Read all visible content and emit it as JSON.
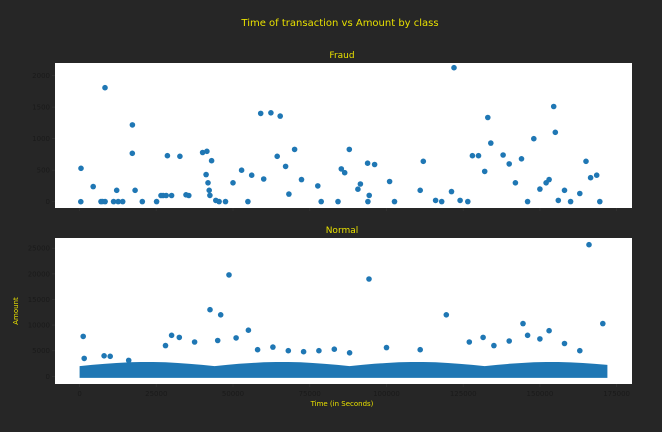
{
  "figure": {
    "title": "Time of transaction vs Amount by class",
    "background": "#262626",
    "title_color": "#e8e000",
    "marker_color": "#1f77b4"
  },
  "chart_data": [
    {
      "type": "scatter",
      "title": "Fraud",
      "xlabel": "",
      "ylabel": "",
      "xlim": [
        -8000,
        180000
      ],
      "ylim": [
        -100,
        2200
      ],
      "x_ticks": [
        0,
        25000,
        50000,
        75000,
        100000,
        125000,
        150000,
        175000
      ],
      "x_tick_labels": [
        "",
        "",
        "",
        "",
        "",
        "",
        "",
        ""
      ],
      "y_ticks": [
        0,
        500,
        1000,
        1500,
        2000
      ],
      "y_tick_labels": [
        "0",
        "500",
        "1000",
        "1500",
        "2000"
      ],
      "grid": false,
      "points": [
        [
          406,
          0
        ],
        [
          472,
          529
        ],
        [
          4462,
          240
        ],
        [
          6986,
          1
        ],
        [
          7519,
          3
        ],
        [
          8296,
          1809
        ],
        [
          8312,
          1
        ],
        [
          11092,
          2
        ],
        [
          12093,
          180
        ],
        [
          12597,
          1
        ],
        [
          14073,
          1
        ],
        [
          17187,
          768
        ],
        [
          17220,
          1218
        ],
        [
          18088,
          180
        ],
        [
          20451,
          2
        ],
        [
          25095,
          2
        ],
        [
          26523,
          99
        ],
        [
          27219,
          99
        ],
        [
          28242,
          99
        ],
        [
          28625,
          730
        ],
        [
          30000,
          99
        ],
        [
          32686,
          720
        ],
        [
          34687,
          110
        ],
        [
          35585,
          99
        ],
        [
          40086,
          780
        ],
        [
          41505,
          800
        ],
        [
          41233,
          430
        ],
        [
          41851,
          300
        ],
        [
          42247,
          180
        ],
        [
          42474,
          100
        ],
        [
          43028,
          650
        ],
        [
          44393,
          20
        ],
        [
          45463,
          1
        ],
        [
          47545,
          1
        ],
        [
          49985,
          300
        ],
        [
          52814,
          500
        ],
        [
          54846,
          1
        ],
        [
          56098,
          420
        ],
        [
          59011,
          1400
        ],
        [
          60000,
          360
        ],
        [
          62341,
          1410
        ],
        [
          64412,
          720
        ],
        [
          65385,
          1357
        ],
        [
          67150,
          560
        ],
        [
          68207,
          120
        ],
        [
          70071,
          830
        ],
        [
          72327,
          350
        ],
        [
          77627,
          250
        ],
        [
          78725,
          1
        ],
        [
          84204,
          2
        ],
        [
          85285,
          520
        ],
        [
          86376,
          460
        ],
        [
          87883,
          830
        ],
        [
          90676,
          199
        ],
        [
          91502,
          280
        ],
        [
          93853,
          611
        ],
        [
          93965,
          1
        ],
        [
          94362,
          100
        ],
        [
          96135,
          590
        ],
        [
          101027,
          320
        ],
        [
          102622,
          1
        ],
        [
          111000,
          180
        ],
        [
          112000,
          640
        ],
        [
          116000,
          20
        ],
        [
          118000,
          2
        ],
        [
          121200,
          160
        ],
        [
          122000,
          2125
        ],
        [
          124000,
          20
        ],
        [
          126500,
          1
        ],
        [
          128000,
          730
        ],
        [
          130000,
          730
        ],
        [
          132000,
          480
        ],
        [
          133000,
          1335
        ],
        [
          134000,
          930
        ],
        [
          138000,
          740
        ],
        [
          140000,
          600
        ],
        [
          142000,
          300
        ],
        [
          144000,
          680
        ],
        [
          146000,
          2
        ],
        [
          148000,
          1000
        ],
        [
          150000,
          200
        ],
        [
          152000,
          300
        ],
        [
          153000,
          350
        ],
        [
          154500,
          1510
        ],
        [
          155000,
          1100
        ],
        [
          156000,
          20
        ],
        [
          158000,
          180
        ],
        [
          160000,
          1
        ],
        [
          163000,
          130
        ],
        [
          165000,
          640
        ],
        [
          166500,
          380
        ],
        [
          168500,
          420
        ],
        [
          169500,
          1
        ]
      ]
    },
    {
      "type": "scatter",
      "title": "Normal",
      "xlabel": "Time (in Seconds)",
      "ylabel": "Amount",
      "xlim": [
        -8000,
        180000
      ],
      "ylim": [
        -1500,
        27000
      ],
      "x_ticks": [
        0,
        25000,
        50000,
        75000,
        100000,
        125000,
        150000,
        175000
      ],
      "x_tick_labels": [
        "0",
        "25000",
        "50000",
        "75000",
        "100000",
        "125000",
        "150000",
        "175000"
      ],
      "y_ticks": [
        0,
        5000,
        10000,
        15000,
        20000,
        25000
      ],
      "y_tick_labels": [
        "0",
        "5000",
        "10000",
        "15000",
        "20000",
        "25000"
      ],
      "grid": false,
      "points": [
        [
          1200,
          7800
        ],
        [
          1500,
          3500
        ],
        [
          8000,
          4000
        ],
        [
          10000,
          3900
        ],
        [
          16000,
          3100
        ],
        [
          28000,
          6000
        ],
        [
          30000,
          8000
        ],
        [
          32500,
          7600
        ],
        [
          37500,
          6700
        ],
        [
          42500,
          13000
        ],
        [
          45000,
          7000
        ],
        [
          46000,
          12000
        ],
        [
          48700,
          19800
        ],
        [
          51000,
          7500
        ],
        [
          55000,
          9000
        ],
        [
          58000,
          5200
        ],
        [
          63000,
          5700
        ],
        [
          68000,
          5000
        ],
        [
          73000,
          4800
        ],
        [
          78000,
          5000
        ],
        [
          83000,
          5300
        ],
        [
          88000,
          4600
        ],
        [
          94300,
          19000
        ],
        [
          100000,
          5600
        ],
        [
          111000,
          5200
        ],
        [
          119500,
          12000
        ],
        [
          127000,
          6700
        ],
        [
          131500,
          7600
        ],
        [
          135000,
          6000
        ],
        [
          140000,
          6900
        ],
        [
          144500,
          10300
        ],
        [
          146000,
          8000
        ],
        [
          150000,
          7300
        ],
        [
          153000,
          8900
        ],
        [
          158000,
          6400
        ],
        [
          163000,
          5000
        ],
        [
          166000,
          25700
        ],
        [
          170500,
          10300
        ]
      ]
    }
  ]
}
